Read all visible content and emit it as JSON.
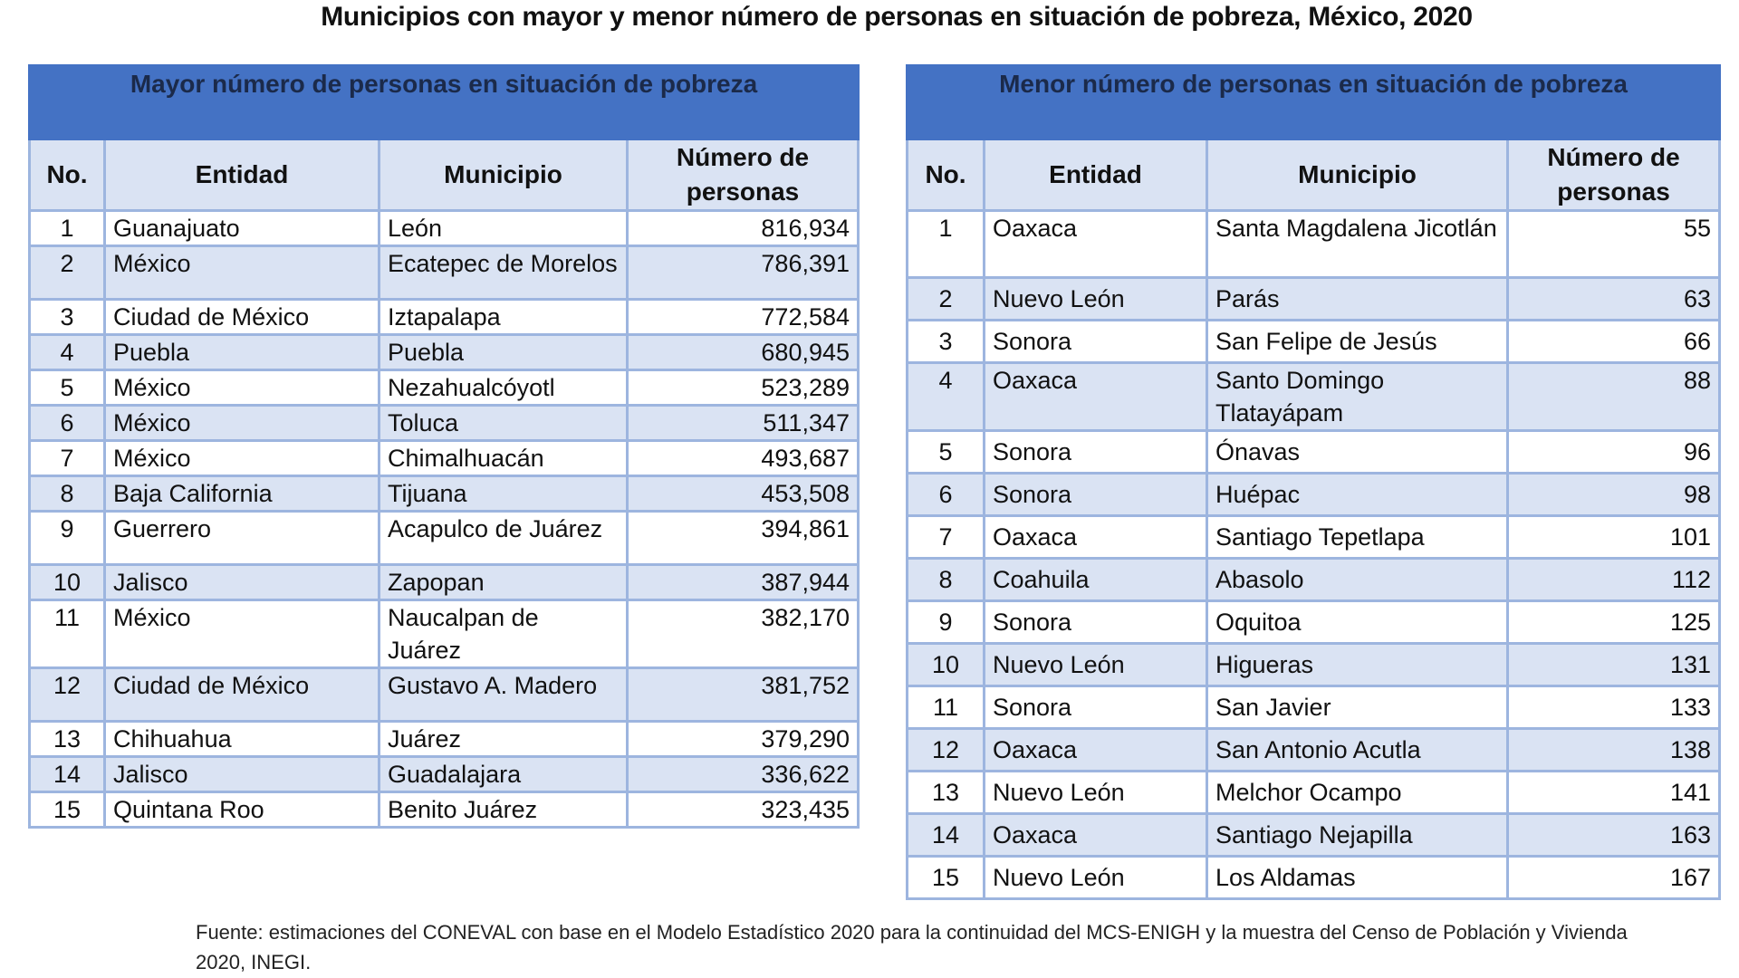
{
  "title": "Municipios con mayor y menor número de personas en situación de pobreza, México, 2020",
  "left": {
    "caption": "Mayor número de personas en situación de pobreza",
    "headers": [
      "No.",
      "Entidad",
      "Municipio",
      "Número de personas"
    ],
    "rows": [
      [
        "1",
        "Guanajuato",
        "León",
        "816,934"
      ],
      [
        "2",
        "México",
        "Ecatepec de Morelos",
        "786,391"
      ],
      [
        "3",
        "Ciudad de México",
        "Iztapalapa",
        "772,584"
      ],
      [
        "4",
        "Puebla",
        "Puebla",
        "680,945"
      ],
      [
        "5",
        "México",
        "Nezahualcóyotl",
        "523,289"
      ],
      [
        "6",
        "México",
        "Toluca",
        "511,347"
      ],
      [
        "7",
        "México",
        "Chimalhuacán",
        "493,687"
      ],
      [
        "8",
        "Baja California",
        "Tijuana",
        "453,508"
      ],
      [
        "9",
        "Guerrero",
        "Acapulco de Juárez",
        "394,861"
      ],
      [
        "10",
        "Jalisco",
        "Zapopan",
        "387,944"
      ],
      [
        "11",
        "México",
        "Naucalpan de Juárez",
        "382,170"
      ],
      [
        "12",
        "Ciudad de México",
        "Gustavo A. Madero",
        "381,752"
      ],
      [
        "13",
        "Chihuahua",
        "Juárez",
        "379,290"
      ],
      [
        "14",
        "Jalisco",
        "Guadalajara",
        "336,622"
      ],
      [
        "15",
        "Quintana Roo",
        "Benito Juárez",
        "323,435"
      ]
    ]
  },
  "right": {
    "caption": "Menor número de personas en situación de pobreza",
    "headers": [
      "No.",
      "Entidad",
      "Municipio",
      "Número de personas"
    ],
    "rows": [
      [
        "1",
        "Oaxaca",
        "Santa Magdalena Jicotlán",
        "55"
      ],
      [
        "2",
        "Nuevo León",
        "Parás",
        "63"
      ],
      [
        "3",
        "Sonora",
        "San Felipe de Jesús",
        "66"
      ],
      [
        "4",
        "Oaxaca",
        "Santo Domingo Tlatayápam",
        "88"
      ],
      [
        "5",
        "Sonora",
        "Ónavas",
        "96"
      ],
      [
        "6",
        "Sonora",
        "Huépac",
        "98"
      ],
      [
        "7",
        "Oaxaca",
        "Santiago Tepetlapa",
        "101"
      ],
      [
        "8",
        "Coahuila",
        "Abasolo",
        "112"
      ],
      [
        "9",
        "Sonora",
        "Oquitoa",
        "125"
      ],
      [
        "10",
        "Nuevo León",
        "Higueras",
        "131"
      ],
      [
        "11",
        "Sonora",
        "San Javier",
        "133"
      ],
      [
        "12",
        "Oaxaca",
        "San Antonio Acutla",
        "138"
      ],
      [
        "13",
        "Nuevo León",
        "Melchor Ocampo",
        "141"
      ],
      [
        "14",
        "Oaxaca",
        "Santiago Nejapilla",
        "163"
      ],
      [
        "15",
        "Nuevo León",
        "Los Aldamas",
        "167"
      ]
    ]
  },
  "footer": "Fuente: estimaciones del CONEVAL con base en el Modelo Estadístico 2020 para la continuidad del MCS-ENIGH y la muestra del Censo de Población y Vivienda 2020, INEGI."
}
